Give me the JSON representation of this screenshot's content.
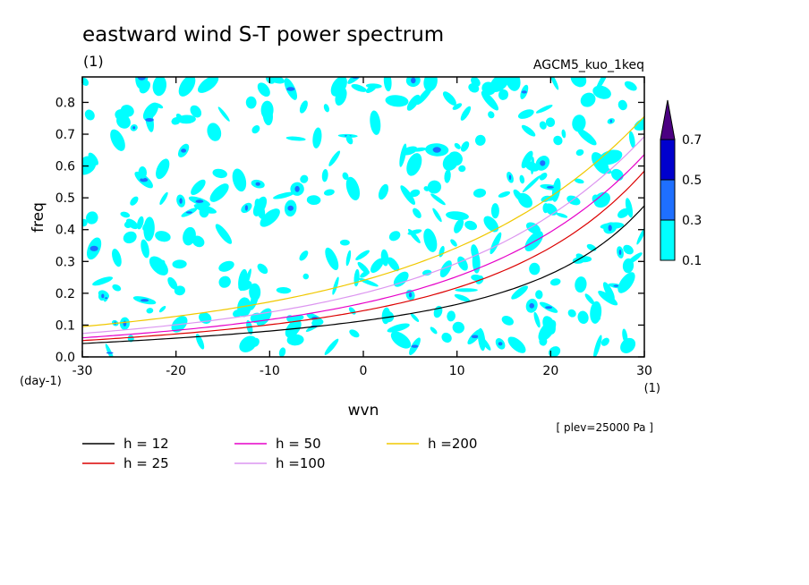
{
  "header": {
    "title": "eastward wind S-T power spectrum",
    "subtitle": "(1)",
    "model": "AGCM5_kuo_1keq",
    "plev_note": "[ plev=25000 Pa ]"
  },
  "chart_data": {
    "type": "heatmap",
    "title": "eastward wind S-T power spectrum",
    "xlabel": "wvn",
    "ylabel": "freq",
    "x_unit": "(1)",
    "y_unit": "(day-1)",
    "xlim": [
      -30,
      30
    ],
    "ylim": [
      0,
      0.88
    ],
    "xticks": [
      "-30",
      "-20",
      "-10",
      "0",
      "10",
      "20",
      "30"
    ],
    "yticks": [
      "0.0",
      "0.1",
      "0.2",
      "0.3",
      "0.4",
      "0.5",
      "0.6",
      "0.7",
      "0.8"
    ],
    "colorbar": {
      "levels": [
        "0.1",
        "0.3",
        "0.5",
        "0.7"
      ],
      "colors": [
        "#00ffff",
        "#1e6fff",
        "#0000cd",
        "#4b0082"
      ]
    },
    "series": [
      {
        "name": "h = 12",
        "color": "#000000"
      },
      {
        "name": "h = 25",
        "color": "#dc0000"
      },
      {
        "name": "h = 50",
        "color": "#e600c8"
      },
      {
        "name": "h =100",
        "color": "#dc96f0"
      },
      {
        "name": "h =200",
        "color": "#f0c800"
      }
    ],
    "legend_position": "bottom"
  }
}
